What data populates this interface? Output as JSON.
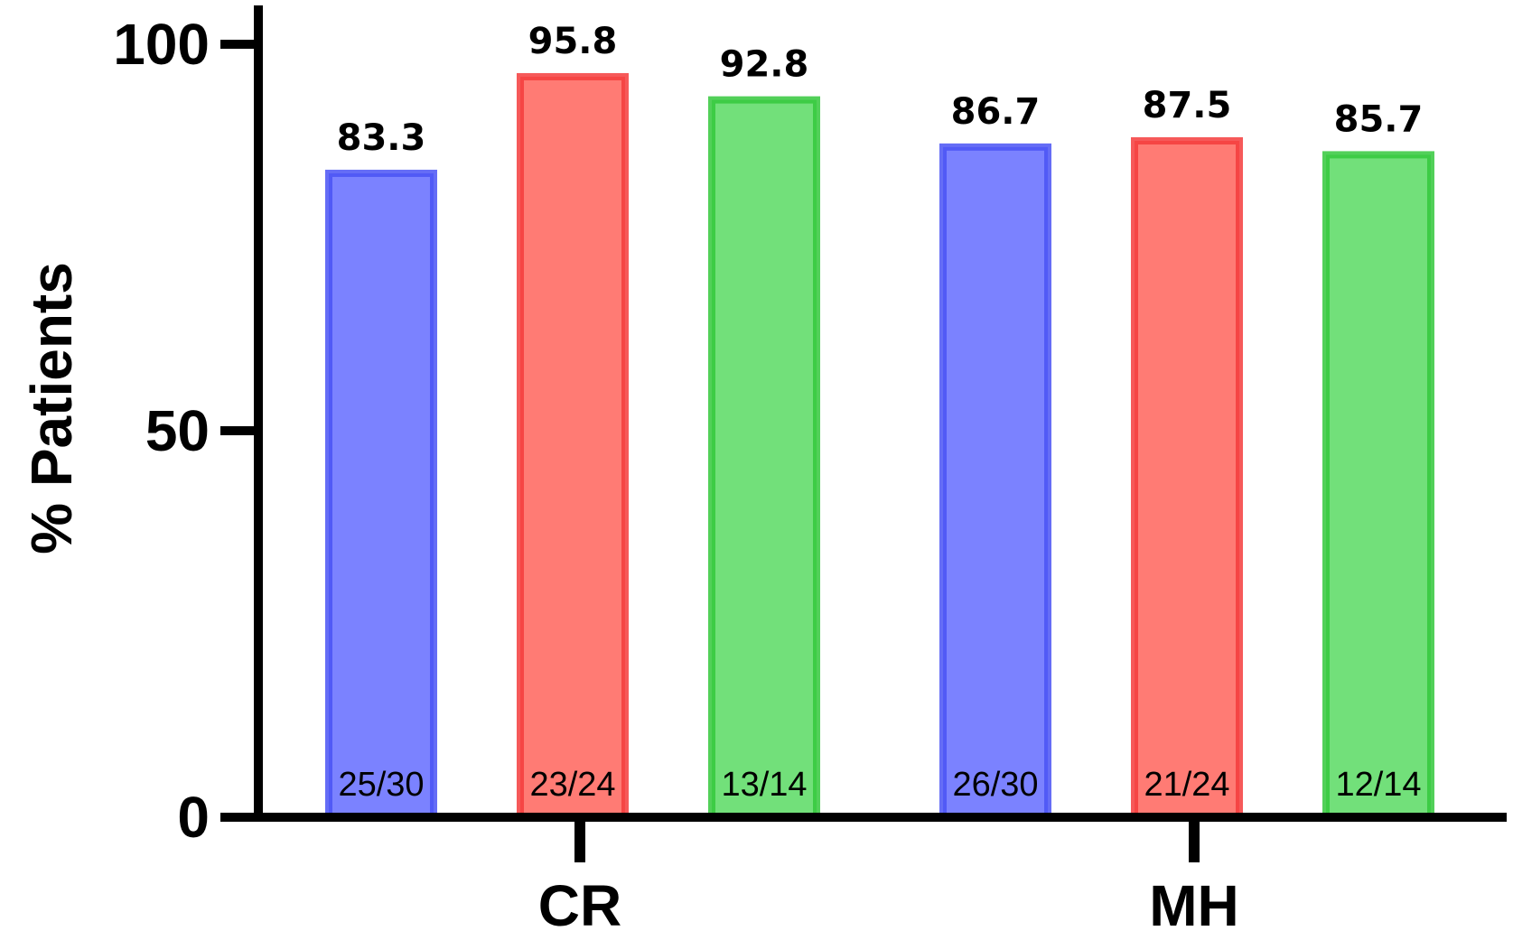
{
  "chart_data": {
    "type": "bar",
    "title": "",
    "xlabel": "",
    "ylabel": "% Patients",
    "ylim": [
      0,
      100
    ],
    "yticks": [
      0,
      50,
      100
    ],
    "grid": false,
    "legend": "none",
    "categories": [
      "CR",
      "MH"
    ],
    "series": [
      {
        "color_fill": "#7b82ff",
        "color_edge": "#4a54f5",
        "values": [
          83.3,
          86.7
        ],
        "counts": [
          "25/30",
          "26/30"
        ]
      },
      {
        "color_fill": "#ff7b74",
        "color_edge": "#f53c3c",
        "values": [
          95.8,
          87.5
        ],
        "counts": [
          "23/24",
          "21/24"
        ]
      },
      {
        "color_fill": "#72e07a",
        "color_edge": "#34c83c",
        "values": [
          92.8,
          85.7
        ],
        "counts": [
          "13/14",
          "12/14"
        ]
      }
    ]
  }
}
